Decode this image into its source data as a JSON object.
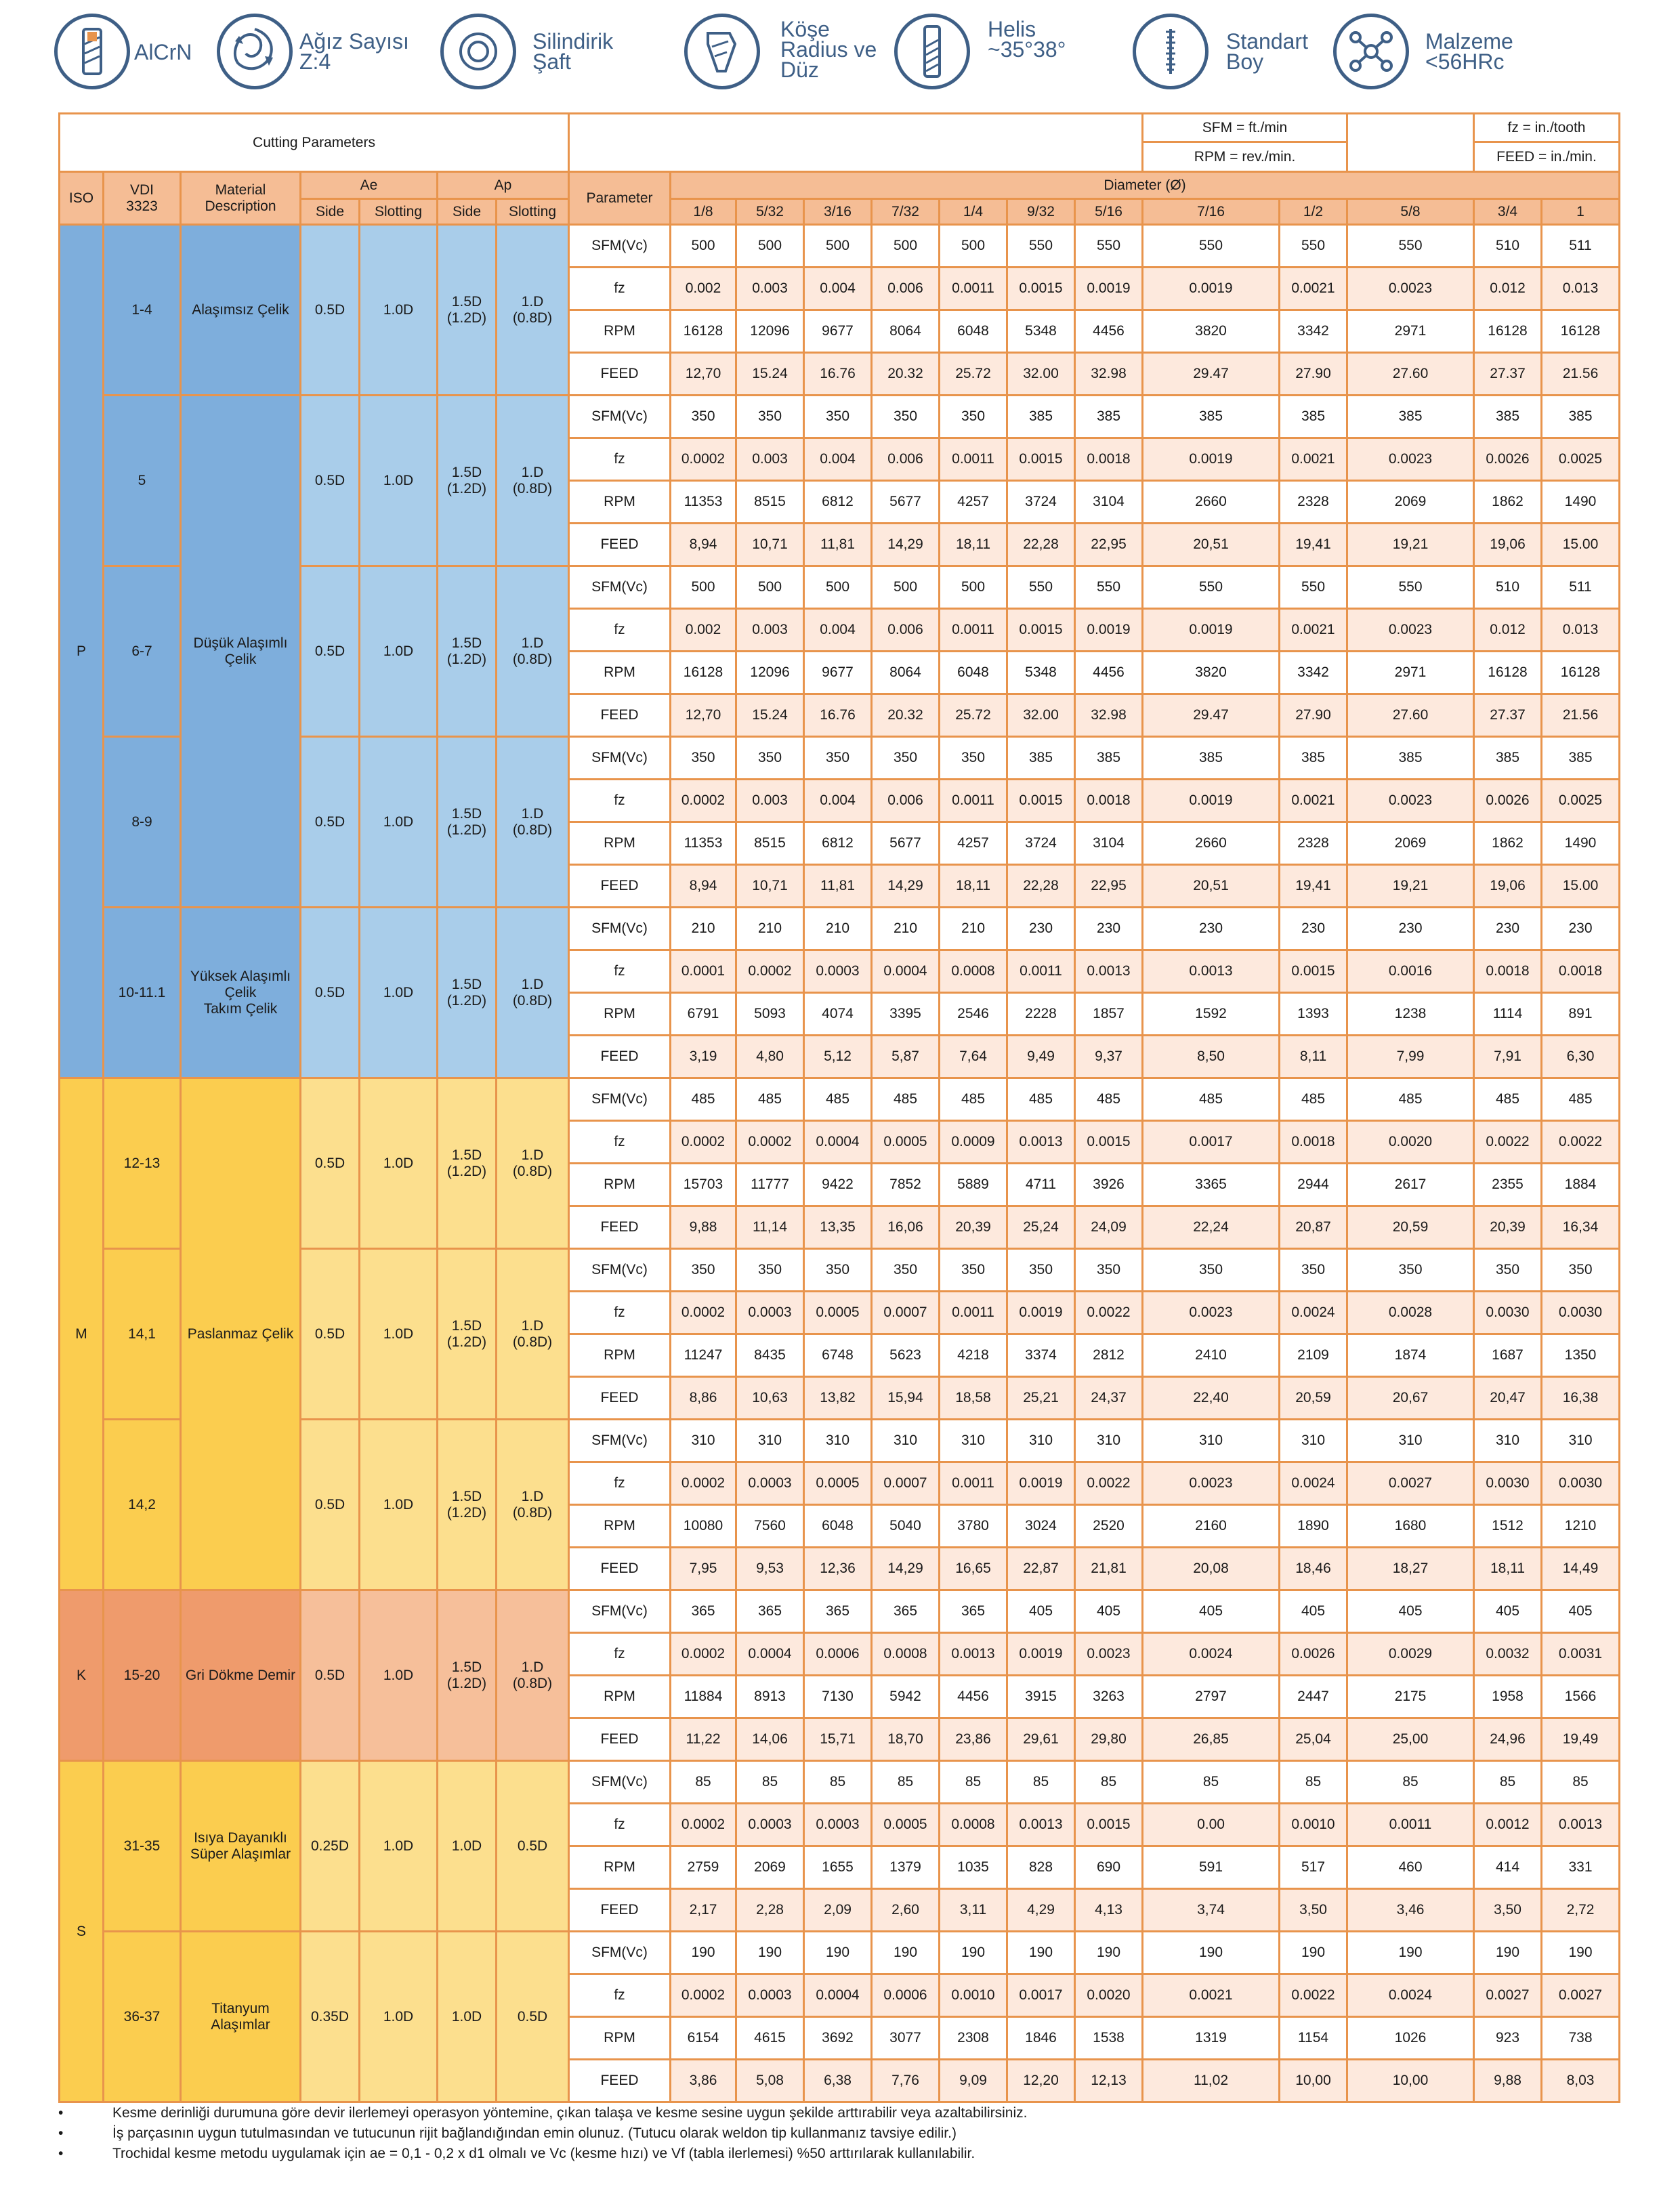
{
  "features": [
    {
      "name": "coating",
      "icon": "coated-endmill-icon",
      "label": "AlCrN"
    },
    {
      "name": "flutes",
      "icon": "flute-spiral-icon",
      "label": "Ağız Sayısı\nZ:4"
    },
    {
      "name": "shank",
      "icon": "cylindrical-shank-icon",
      "label": "Silindirik\nŞaft"
    },
    {
      "name": "corner",
      "icon": "corner-radius-tool-icon",
      "label": "Köşe\nRadius ve\nDüz"
    },
    {
      "name": "helix",
      "icon": "helix-endmill-icon",
      "label": "Helis\n~35°38°"
    },
    {
      "name": "length",
      "icon": "standard-length-ruler-icon",
      "label": "Standart\nBoy"
    },
    {
      "name": "material",
      "icon": "molecule-icon",
      "label": "Malzeme\n<56HRc"
    }
  ],
  "header": {
    "title": "Cutting Parameters",
    "sfm_unit": "SFM = ft./min",
    "rpm_unit": "RPM = rev./min.",
    "fz_unit": "fz = in./tooth",
    "feed_unit": "FEED = in./min.",
    "iso": "ISO",
    "vdi": "VDI\n3323",
    "material": "Material\nDescription",
    "ae": "Ae",
    "ap": "Ap",
    "side": "Side",
    "slotting": "Slotting",
    "parameter": "Parameter",
    "diameter": "Diameter (Ø)",
    "diameters": [
      "1/8",
      "5/32",
      "3/16",
      "7/32",
      "1/4",
      "9/32",
      "5/16",
      "7/16",
      "1/2",
      "5/8",
      "3/4",
      "1"
    ]
  },
  "param_names": [
    "SFM(Vc)",
    "fz",
    "RPM",
    "FEED"
  ],
  "groups": [
    {
      "iso": "P",
      "cls": "gP",
      "materials": [
        {
          "text": "Alaşımsız Çelik",
          "span": 1
        },
        {
          "text": "Düşük Alaşımlı\nÇelik",
          "span": 3
        },
        {
          "text": "Yüksek Alaşımlı\nÇelik\nTakım Çelik",
          "span": 1
        }
      ],
      "blocks": [
        {
          "vdi": "1-4",
          "ae_side": "0.5D",
          "ae_slot": "1.0D",
          "ap_side": "1.5D\n(1.2D)",
          "ap_slot": "1.D\n(0.8D)",
          "rows": [
            [
              "500",
              "500",
              "500",
              "500",
              "500",
              "550",
              "550",
              "550",
              "550",
              "550",
              "510",
              "511"
            ],
            [
              "0.002",
              "0.003",
              "0.004",
              "0.006",
              "0.0011",
              "0.0015",
              "0.0019",
              "0.0019",
              "0.0021",
              "0.0023",
              "0.012",
              "0.013"
            ],
            [
              "16128",
              "12096",
              "9677",
              "8064",
              "6048",
              "5348",
              "4456",
              "3820",
              "3342",
              "2971",
              "16128",
              "16128"
            ],
            [
              "12,70",
              "15.24",
              "16.76",
              "20.32",
              "25.72",
              "32.00",
              "32.98",
              "29.47",
              "27.90",
              "27.60",
              "27.37",
              "21.56"
            ]
          ]
        },
        {
          "vdi": "5",
          "ae_side": "0.5D",
          "ae_slot": "1.0D",
          "ap_side": "1.5D\n(1.2D)",
          "ap_slot": "1.D\n(0.8D)",
          "rows": [
            [
              "350",
              "350",
              "350",
              "350",
              "350",
              "385",
              "385",
              "385",
              "385",
              "385",
              "385",
              "385"
            ],
            [
              "0.0002",
              "0.003",
              "0.004",
              "0.006",
              "0.0011",
              "0.0015",
              "0.0018",
              "0.0019",
              "0.0021",
              "0.0023",
              "0.0026",
              "0.0025"
            ],
            [
              "11353",
              "8515",
              "6812",
              "5677",
              "4257",
              "3724",
              "3104",
              "2660",
              "2328",
              "2069",
              "1862",
              "1490"
            ],
            [
              "8,94",
              "10,71",
              "11,81",
              "14,29",
              "18,11",
              "22,28",
              "22,95",
              "20,51",
              "19,41",
              "19,21",
              "19,06",
              "15.00"
            ]
          ]
        },
        {
          "vdi": "6-7",
          "ae_side": "0.5D",
          "ae_slot": "1.0D",
          "ap_side": "1.5D\n(1.2D)",
          "ap_slot": "1.D\n(0.8D)",
          "rows": [
            [
              "500",
              "500",
              "500",
              "500",
              "500",
              "550",
              "550",
              "550",
              "550",
              "550",
              "510",
              "511"
            ],
            [
              "0.002",
              "0.003",
              "0.004",
              "0.006",
              "0.0011",
              "0.0015",
              "0.0019",
              "0.0019",
              "0.0021",
              "0.0023",
              "0.012",
              "0.013"
            ],
            [
              "16128",
              "12096",
              "9677",
              "8064",
              "6048",
              "5348",
              "4456",
              "3820",
              "3342",
              "2971",
              "16128",
              "16128"
            ],
            [
              "12,70",
              "15.24",
              "16.76",
              "20.32",
              "25.72",
              "32.00",
              "32.98",
              "29.47",
              "27.90",
              "27.60",
              "27.37",
              "21.56"
            ]
          ]
        },
        {
          "vdi": "8-9",
          "ae_side": "0.5D",
          "ae_slot": "1.0D",
          "ap_side": "1.5D\n(1.2D)",
          "ap_slot": "1.D\n(0.8D)",
          "rows": [
            [
              "350",
              "350",
              "350",
              "350",
              "350",
              "385",
              "385",
              "385",
              "385",
              "385",
              "385",
              "385"
            ],
            [
              "0.0002",
              "0.003",
              "0.004",
              "0.006",
              "0.0011",
              "0.0015",
              "0.0018",
              "0.0019",
              "0.0021",
              "0.0023",
              "0.0026",
              "0.0025"
            ],
            [
              "11353",
              "8515",
              "6812",
              "5677",
              "4257",
              "3724",
              "3104",
              "2660",
              "2328",
              "2069",
              "1862",
              "1490"
            ],
            [
              "8,94",
              "10,71",
              "11,81",
              "14,29",
              "18,11",
              "22,28",
              "22,95",
              "20,51",
              "19,41",
              "19,21",
              "19,06",
              "15.00"
            ]
          ]
        },
        {
          "vdi": "10-11.1",
          "ae_side": "0.5D",
          "ae_slot": "1.0D",
          "ap_side": "1.5D\n(1.2D)",
          "ap_slot": "1.D\n(0.8D)",
          "rows": [
            [
              "210",
              "210",
              "210",
              "210",
              "210",
              "230",
              "230",
              "230",
              "230",
              "230",
              "230",
              "230"
            ],
            [
              "0.0001",
              "0.0002",
              "0.0003",
              "0.0004",
              "0.0008",
              "0.0011",
              "0.0013",
              "0.0013",
              "0.0015",
              "0.0016",
              "0.0018",
              "0.0018"
            ],
            [
              "6791",
              "5093",
              "4074",
              "3395",
              "2546",
              "2228",
              "1857",
              "1592",
              "1393",
              "1238",
              "1114",
              "891"
            ],
            [
              "3,19",
              "4,80",
              "5,12",
              "5,87",
              "7,64",
              "9,49",
              "9,37",
              "8,50",
              "8,11",
              "7,99",
              "7,91",
              "6,30"
            ]
          ]
        }
      ]
    },
    {
      "iso": "M",
      "cls": "gM",
      "materials": [
        {
          "text": "Paslanmaz Çelik",
          "span": 3
        }
      ],
      "blocks": [
        {
          "vdi": "12-13",
          "ae_side": "0.5D",
          "ae_slot": "1.0D",
          "ap_side": "1.5D\n(1.2D)",
          "ap_slot": "1.D\n(0.8D)",
          "rows": [
            [
              "485",
              "485",
              "485",
              "485",
              "485",
              "485",
              "485",
              "485",
              "485",
              "485",
              "485",
              "485"
            ],
            [
              "0.0002",
              "0.0002",
              "0.0004",
              "0.0005",
              "0.0009",
              "0.0013",
              "0.0015",
              "0.0017",
              "0.0018",
              "0.0020",
              "0.0022",
              "0.0022"
            ],
            [
              "15703",
              "11777",
              "9422",
              "7852",
              "5889",
              "4711",
              "3926",
              "3365",
              "2944",
              "2617",
              "2355",
              "1884"
            ],
            [
              "9,88",
              "11,14",
              "13,35",
              "16,06",
              "20,39",
              "25,24",
              "24,09",
              "22,24",
              "20,87",
              "20,59",
              "20,39",
              "16,34"
            ]
          ]
        },
        {
          "vdi": "14,1",
          "ae_side": "0.5D",
          "ae_slot": "1.0D",
          "ap_side": "1.5D\n(1.2D)",
          "ap_slot": "1.D\n(0.8D)",
          "rows": [
            [
              "350",
              "350",
              "350",
              "350",
              "350",
              "350",
              "350",
              "350",
              "350",
              "350",
              "350",
              "350"
            ],
            [
              "0.0002",
              "0.0003",
              "0.0005",
              "0.0007",
              "0.0011",
              "0.0019",
              "0.0022",
              "0.0023",
              "0.0024",
              "0.0028",
              "0.0030",
              "0.0030"
            ],
            [
              "11247",
              "8435",
              "6748",
              "5623",
              "4218",
              "3374",
              "2812",
              "2410",
              "2109",
              "1874",
              "1687",
              "1350"
            ],
            [
              "8,86",
              "10,63",
              "13,82",
              "15,94",
              "18,58",
              "25,21",
              "24,37",
              "22,40",
              "20,59",
              "20,67",
              "20,47",
              "16,38"
            ]
          ]
        },
        {
          "vdi": "14,2",
          "ae_side": "0.5D",
          "ae_slot": "1.0D",
          "ap_side": "1.5D\n(1.2D)",
          "ap_slot": "1.D\n(0.8D)",
          "rows": [
            [
              "310",
              "310",
              "310",
              "310",
              "310",
              "310",
              "310",
              "310",
              "310",
              "310",
              "310",
              "310"
            ],
            [
              "0.0002",
              "0.0003",
              "0.0005",
              "0.0007",
              "0.0011",
              "0.0019",
              "0.0022",
              "0.0023",
              "0.0024",
              "0.0027",
              "0.0030",
              "0.0030"
            ],
            [
              "10080",
              "7560",
              "6048",
              "5040",
              "3780",
              "3024",
              "2520",
              "2160",
              "1890",
              "1680",
              "1512",
              "1210"
            ],
            [
              "7,95",
              "9,53",
              "12,36",
              "14,29",
              "16,65",
              "22,87",
              "21,81",
              "20,08",
              "18,46",
              "18,27",
              "18,11",
              "14,49"
            ]
          ]
        }
      ]
    },
    {
      "iso": "K",
      "cls": "gK",
      "materials": [
        {
          "text": "Gri Dökme Demir",
          "span": 1
        }
      ],
      "blocks": [
        {
          "vdi": "15-20",
          "ae_side": "0.5D",
          "ae_slot": "1.0D",
          "ap_side": "1.5D\n(1.2D)",
          "ap_slot": "1.D\n(0.8D)",
          "rows": [
            [
              "365",
              "365",
              "365",
              "365",
              "365",
              "405",
              "405",
              "405",
              "405",
              "405",
              "405",
              "405"
            ],
            [
              "0.0002",
              "0.0004",
              "0.0006",
              "0.0008",
              "0.0013",
              "0.0019",
              "0.0023",
              "0.0024",
              "0.0026",
              "0.0029",
              "0.0032",
              "0.0031"
            ],
            [
              "11884",
              "8913",
              "7130",
              "5942",
              "4456",
              "3915",
              "3263",
              "2797",
              "2447",
              "2175",
              "1958",
              "1566"
            ],
            [
              "11,22",
              "14,06",
              "15,71",
              "18,70",
              "23,86",
              "29,61",
              "29,80",
              "26,85",
              "25,04",
              "25,00",
              "24,96",
              "19,49"
            ]
          ]
        }
      ]
    },
    {
      "iso": "S",
      "cls": "gS",
      "materials": [
        {
          "text": "Isıya Dayanıklı\nSüper Alaşımlar",
          "span": 1
        },
        {
          "text": "Titanyum\nAlaşımlar",
          "span": 1
        }
      ],
      "blocks": [
        {
          "vdi": "31-35",
          "ae_side": "0.25D",
          "ae_slot": "1.0D",
          "ap_side": "1.0D",
          "ap_slot": "0.5D",
          "rows": [
            [
              "85",
              "85",
              "85",
              "85",
              "85",
              "85",
              "85",
              "85",
              "85",
              "85",
              "85",
              "85"
            ],
            [
              "0.0002",
              "0.0003",
              "0.0003",
              "0.0005",
              "0.0008",
              "0.0013",
              "0.0015",
              "0.00",
              "0.0010",
              "0.0011",
              "0.0012",
              "0.0013"
            ],
            [
              "2759",
              "2069",
              "1655",
              "1379",
              "1035",
              "828",
              "690",
              "591",
              "517",
              "460",
              "414",
              "331"
            ],
            [
              "2,17",
              "2,28",
              "2,09",
              "2,60",
              "3,11",
              "4,29",
              "4,13",
              "3,74",
              "3,50",
              "3,46",
              "3,50",
              "2,72"
            ]
          ]
        },
        {
          "vdi": "36-37",
          "ae_side": "0.35D",
          "ae_slot": "1.0D",
          "ap_side": "1.0D",
          "ap_slot": "0.5D",
          "rows": [
            [
              "190",
              "190",
              "190",
              "190",
              "190",
              "190",
              "190",
              "190",
              "190",
              "190",
              "190",
              "190"
            ],
            [
              "0.0002",
              "0.0003",
              "0.0004",
              "0.0006",
              "0.0010",
              "0.0017",
              "0.0020",
              "0.0021",
              "0.0022",
              "0.0024",
              "0.0027",
              "0.0027"
            ],
            [
              "6154",
              "4615",
              "3692",
              "3077",
              "2308",
              "1846",
              "1538",
              "1319",
              "1154",
              "1026",
              "923",
              "738"
            ],
            [
              "3,86",
              "5,08",
              "6,38",
              "7,76",
              "9,09",
              "12,20",
              "12,13",
              "11,02",
              "10,00",
              "10,00",
              "9,88",
              "8,03"
            ]
          ]
        }
      ]
    }
  ],
  "notes": [
    "Kesme derinliği durumuna göre devir ilerlemeyi operasyon yöntemine, çıkan talaşa ve kesme sesine uygun şekilde arttırabilir veya azaltabilirsiniz.",
    "İş parçasının uygun tutulmasından ve tutucunun rijit bağlandığından emin olunuz. (Tutucu olarak weldon tip kullanmanız tavsiye edilir.)",
    "Trochidal kesme metodu uygulamak için ae = 0,1 - 0,2 x d1 olmalı ve Vc (kesme hızı) ve Vf (tabla ilerlemesi) %50 arttırılarak kullanılabilir."
  ],
  "bullet": "•"
}
